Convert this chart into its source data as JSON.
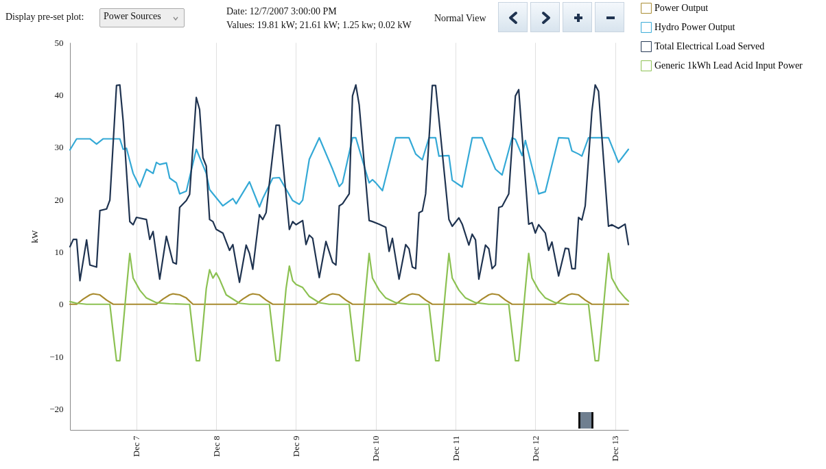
{
  "chart_data": {
    "type": "line",
    "annotations": [
      "Display pre-set plot:",
      "Power Sources",
      "Date: 12/7/2007 3:00:00 PM",
      "Values: 19.81 kW; 21.61 kW; 1.25 kw; 0.02 kW",
      "Normal View"
    ],
    "ylabel": "kW",
    "xlim": [
      "2007-12-06T04:00",
      "2007-12-13T04:00"
    ],
    "xticks": [
      {
        "value": "2007-12-07T00:00",
        "label": "Dec 7"
      },
      {
        "value": "2007-12-08T00:00",
        "label": "Dec 8"
      },
      {
        "value": "2007-12-09T00:00",
        "label": "Dec 9"
      },
      {
        "value": "2007-12-10T00:00",
        "label": "Dec 10"
      },
      {
        "value": "2007-12-11T00:00",
        "label": "Dec 11"
      },
      {
        "value": "2007-12-12T00:00",
        "label": "Dec 12"
      },
      {
        "value": "2007-12-13T00:00",
        "label": "Dec 13"
      }
    ],
    "ylim": [
      -24,
      50
    ],
    "yticks": [
      -20,
      -10,
      0,
      10,
      20,
      30,
      40,
      50
    ],
    "grid": "x",
    "legend": "top right",
    "line_style": "solid",
    "marker": "none",
    "series": [
      {
        "name": "Power Output",
        "color": "#a88a2e",
        "x": [
          "2007-12-06T04:00",
          "2007-12-06T06:00",
          "2007-12-06T08:00",
          "2007-12-06T10:00",
          "2007-12-06T11:00",
          "2007-12-06T13:00",
          "2007-12-06T15:00",
          "2007-12-06T17:00",
          "2007-12-07T06:00",
          "2007-12-07T08:00",
          "2007-12-07T10:00",
          "2007-12-07T11:00",
          "2007-12-07T13:00",
          "2007-12-07T15:00",
          "2007-12-07T17:00",
          "2007-12-08T06:00",
          "2007-12-08T08:00",
          "2007-12-08T10:00",
          "2007-12-08T11:00",
          "2007-12-08T13:00",
          "2007-12-08T15:00",
          "2007-12-08T17:00",
          "2007-12-09T06:00",
          "2007-12-09T08:00",
          "2007-12-09T10:00",
          "2007-12-09T11:00",
          "2007-12-09T13:00",
          "2007-12-09T15:00",
          "2007-12-09T17:00",
          "2007-12-10T06:00",
          "2007-12-10T08:00",
          "2007-12-10T10:00",
          "2007-12-10T11:00",
          "2007-12-10T13:00",
          "2007-12-10T15:00",
          "2007-12-10T17:00",
          "2007-12-11T06:00",
          "2007-12-11T08:00",
          "2007-12-11T10:00",
          "2007-12-11T11:00",
          "2007-12-11T13:00",
          "2007-12-11T15:00",
          "2007-12-11T17:00",
          "2007-12-12T06:00",
          "2007-12-12T08:00",
          "2007-12-12T10:00",
          "2007-12-12T11:00",
          "2007-12-12T13:00",
          "2007-12-12T15:00",
          "2007-12-12T17:00",
          "2007-12-13T04:00"
        ],
        "values": [
          0,
          0,
          1.0,
          1.8,
          2.0,
          1.8,
          0.8,
          0,
          0,
          1.0,
          1.8,
          2.0,
          1.8,
          1.2,
          0,
          0,
          1.0,
          1.8,
          2.0,
          1.8,
          0.8,
          0,
          0,
          1.0,
          1.8,
          2.0,
          1.8,
          0.8,
          0,
          0,
          1.0,
          1.8,
          2.0,
          1.8,
          0.8,
          0,
          0,
          1.0,
          1.8,
          2.0,
          1.8,
          0.8,
          0,
          0,
          1.0,
          1.8,
          2.0,
          1.8,
          0.8,
          0,
          0
        ]
      },
      {
        "name": "Hydro Power Output",
        "color": "#34a9d6",
        "x": [
          "2007-12-06T04:00",
          "2007-12-06T06:00",
          "2007-12-06T10:00",
          "2007-12-06T12:00",
          "2007-12-06T14:00",
          "2007-12-06T19:00",
          "2007-12-06T20:00",
          "2007-12-06T21:00",
          "2007-12-06T23:00",
          "2007-12-07T01:00",
          "2007-12-07T03:00",
          "2007-12-07T05:00",
          "2007-12-07T06:00",
          "2007-12-07T07:00",
          "2007-12-07T09:00",
          "2007-12-07T10:00",
          "2007-12-07T12:00",
          "2007-12-07T13:00",
          "2007-12-07T15:00",
          "2007-12-07T18:00",
          "2007-12-07T21:00",
          "2007-12-07T22:00",
          "2007-12-08T02:00",
          "2007-12-08T05:00",
          "2007-12-08T06:00",
          "2007-12-08T10:00",
          "2007-12-08T13:00",
          "2007-12-08T14:00",
          "2007-12-08T17:00",
          "2007-12-08T19:00",
          "2007-12-08T23:00",
          "2007-12-09T01:00",
          "2007-12-09T02:00",
          "2007-12-09T04:00",
          "2007-12-09T07:00",
          "2007-12-09T11:00",
          "2007-12-09T13:00",
          "2007-12-09T14:00",
          "2007-12-09T17:00",
          "2007-12-09T18:00",
          "2007-12-09T22:00",
          "2007-12-09T23:00",
          "2007-12-10T00:00",
          "2007-12-10T02:00",
          "2007-12-10T06:00",
          "2007-12-10T10:00",
          "2007-12-10T12:00",
          "2007-12-10T14:00",
          "2007-12-10T16:00",
          "2007-12-10T18:00",
          "2007-12-10T19:00",
          "2007-12-10T22:00",
          "2007-12-10T23:00",
          "2007-12-11T02:00",
          "2007-12-11T05:00",
          "2007-12-11T08:00",
          "2007-12-11T12:00",
          "2007-12-11T14:00",
          "2007-12-11T17:00",
          "2007-12-11T18:00",
          "2007-12-11T20:00",
          "2007-12-11T21:00",
          "2007-12-12T00:00",
          "2007-12-12T01:00",
          "2007-12-12T03:00",
          "2007-12-12T07:00",
          "2007-12-12T10:00",
          "2007-12-12T11:00",
          "2007-12-12T13:00",
          "2007-12-12T14:00",
          "2007-12-12T16:00",
          "2007-12-12T22:00",
          "2007-12-13T01:00",
          "2007-12-13T04:00"
        ],
        "values": [
          29.5,
          31.6,
          31.6,
          30.6,
          31.6,
          31.6,
          29.6,
          29.8,
          25.0,
          22.4,
          25.8,
          25.0,
          27.1,
          26.7,
          27.0,
          24.1,
          23.2,
          21.1,
          21.6,
          29.6,
          25.0,
          21.9,
          18.8,
          20.2,
          19.2,
          23.4,
          18.6,
          20.2,
          24.1,
          24.2,
          19.8,
          19.1,
          19.9,
          27.7,
          31.8,
          25.8,
          22.5,
          23.2,
          31.8,
          31.8,
          23.2,
          23.8,
          23.2,
          21.7,
          31.8,
          31.8,
          28.7,
          27.6,
          31.8,
          31.8,
          28.3,
          28.4,
          23.7,
          22.4,
          31.8,
          31.8,
          25.8,
          24.7,
          31.8,
          31.5,
          28.4,
          31.3,
          23.7,
          21.1,
          21.5,
          31.8,
          31.7,
          29.3,
          28.7,
          28.3,
          31.8,
          31.8,
          27.1,
          29.6
        ]
      },
      {
        "name": "Total Electrical Load Served",
        "color": "#1f3350",
        "x": [
          "2007-12-06T04:00",
          "2007-12-06T05:00",
          "2007-12-06T06:00",
          "2007-12-06T07:00",
          "2007-12-06T09:00",
          "2007-12-06T10:00",
          "2007-12-06T12:00",
          "2007-12-06T13:00",
          "2007-12-06T15:00",
          "2007-12-06T16:00",
          "2007-12-06T18:00",
          "2007-12-06T19:00",
          "2007-12-06T20:00",
          "2007-12-06T22:00",
          "2007-12-06T23:00",
          "2007-12-07T00:00",
          "2007-12-07T03:00",
          "2007-12-07T04:00",
          "2007-12-07T05:00",
          "2007-12-07T07:00",
          "2007-12-07T09:00",
          "2007-12-07T11:00",
          "2007-12-07T12:00",
          "2007-12-07T13:00",
          "2007-12-07T15:00",
          "2007-12-07T16:00",
          "2007-12-07T18:00",
          "2007-12-07T19:00",
          "2007-12-07T20:00",
          "2007-12-07T21:00",
          "2007-12-07T22:00",
          "2007-12-07T23:00",
          "2007-12-08T00:00",
          "2007-12-08T02:00",
          "2007-12-08T04:00",
          "2007-12-08T05:00",
          "2007-12-08T07:00",
          "2007-12-08T09:00",
          "2007-12-08T10:00",
          "2007-12-08T11:00",
          "2007-12-08T13:00",
          "2007-12-08T14:00",
          "2007-12-08T15:00",
          "2007-12-08T16:00",
          "2007-12-08T18:00",
          "2007-12-08T19:00",
          "2007-12-08T22:00",
          "2007-12-08T23:00",
          "2007-12-09T00:00",
          "2007-12-09T02:00",
          "2007-12-09T03:00",
          "2007-12-09T04:00",
          "2007-12-09T05:00",
          "2007-12-09T07:00",
          "2007-12-09T09:00",
          "2007-12-09T11:00",
          "2007-12-09T12:00",
          "2007-12-09T13:00",
          "2007-12-09T14:00",
          "2007-12-09T16:00",
          "2007-12-09T17:00",
          "2007-12-09T18:00",
          "2007-12-09T19:00",
          "2007-12-09T22:00",
          "2007-12-09T23:00",
          "2007-12-10T01:00",
          "2007-12-10T03:00",
          "2007-12-10T04:00",
          "2007-12-10T05:00",
          "2007-12-10T07:00",
          "2007-12-10T09:00",
          "2007-12-10T10:00",
          "2007-12-10T11:00",
          "2007-12-10T12:00",
          "2007-12-10T13:00",
          "2007-12-10T14:00",
          "2007-12-10T15:00",
          "2007-12-10T17:00",
          "2007-12-10T18:00",
          "2007-12-10T22:00",
          "2007-12-10T23:00",
          "2007-12-11T01:00",
          "2007-12-11T02:00",
          "2007-12-11T04:00",
          "2007-12-11T05:00",
          "2007-12-11T06:00",
          "2007-12-11T07:00",
          "2007-12-11T09:00",
          "2007-12-11T10:00",
          "2007-12-11T11:00",
          "2007-12-11T12:00",
          "2007-12-11T13:00",
          "2007-12-11T14:00",
          "2007-12-11T16:00",
          "2007-12-11T18:00",
          "2007-12-11T19:00",
          "2007-12-11T22:00",
          "2007-12-11T23:00",
          "2007-12-12T00:00",
          "2007-12-12T01:00",
          "2007-12-12T03:00",
          "2007-12-12T04:00",
          "2007-12-12T05:00",
          "2007-12-12T07:00",
          "2007-12-12T09:00",
          "2007-12-12T10:00",
          "2007-12-12T11:00",
          "2007-12-12T12:00",
          "2007-12-12T13:00",
          "2007-12-12T14:00",
          "2007-12-12T15:00",
          "2007-12-12T17:00",
          "2007-12-12T18:00",
          "2007-12-12T19:00",
          "2007-12-12T22:00",
          "2007-12-12T23:00",
          "2007-12-13T01:00",
          "2007-12-13T03:00",
          "2007-12-13T04:00"
        ],
        "values": [
          11.0,
          12.4,
          12.4,
          4.5,
          12.3,
          7.5,
          7.1,
          17.9,
          18.2,
          19.9,
          41.8,
          41.9,
          35.0,
          15.8,
          15.2,
          16.6,
          16.2,
          12.4,
          13.9,
          4.8,
          13.0,
          8.0,
          7.7,
          18.5,
          19.8,
          21.0,
          39.5,
          37.2,
          28.0,
          26.4,
          16.2,
          15.8,
          14.3,
          13.6,
          10.3,
          11.4,
          4.2,
          11.3,
          9.7,
          6.7,
          17.1,
          16.2,
          17.5,
          23.2,
          34.2,
          34.2,
          14.3,
          15.8,
          15.2,
          16.0,
          11.4,
          13.2,
          12.6,
          5.1,
          12.0,
          8.0,
          7.5,
          18.8,
          19.2,
          21.1,
          39.8,
          41.9,
          38.1,
          16.0,
          15.8,
          15.3,
          14.7,
          10.1,
          12.6,
          4.8,
          11.4,
          10.6,
          7.1,
          6.8,
          17.5,
          17.8,
          21.1,
          41.8,
          41.8,
          16.2,
          14.9,
          16.5,
          15.3,
          11.3,
          13.4,
          12.3,
          4.8,
          11.3,
          10.6,
          6.8,
          7.5,
          18.5,
          18.7,
          21.1,
          39.8,
          41.0,
          15.3,
          15.6,
          13.6,
          15.2,
          13.6,
          10.3,
          11.9,
          5.4,
          10.7,
          10.6,
          6.8,
          6.8,
          16.6,
          16.1,
          18.8,
          36.8,
          41.9,
          40.7,
          14.9,
          15.2,
          14.5,
          15.3,
          11.4
        ]
      },
      {
        "name": "Generic 1kWh Lead Acid Input Power",
        "color": "#8cc152",
        "x": [
          "2007-12-06T04:00",
          "2007-12-06T06:00",
          "2007-12-06T09:00",
          "2007-12-06T16:00",
          "2007-12-06T17:00",
          "2007-12-06T18:00",
          "2007-12-06T19:00",
          "2007-12-06T20:00",
          "2007-12-06T21:00",
          "2007-12-06T22:00",
          "2007-12-06T23:00",
          "2007-12-07T01:00",
          "2007-12-07T03:00",
          "2007-12-07T06:00",
          "2007-12-07T10:00",
          "2007-12-07T15:00",
          "2007-12-07T16:00",
          "2007-12-07T17:00",
          "2007-12-07T18:00",
          "2007-12-07T19:00",
          "2007-12-07T20:00",
          "2007-12-07T21:00",
          "2007-12-07T22:00",
          "2007-12-07T23:00",
          "2007-12-08T00:00",
          "2007-12-08T01:00",
          "2007-12-08T03:00",
          "2007-12-08T07:00",
          "2007-12-08T10:00",
          "2007-12-08T16:00",
          "2007-12-08T17:00",
          "2007-12-08T18:00",
          "2007-12-08T19:00",
          "2007-12-08T20:00",
          "2007-12-08T21:00",
          "2007-12-08T22:00",
          "2007-12-08T23:00",
          "2007-12-09T00:00",
          "2007-12-09T01:00",
          "2007-12-09T02:00",
          "2007-12-09T04:00",
          "2007-12-09T07:00",
          "2007-12-09T10:00",
          "2007-12-09T16:00",
          "2007-12-09T17:00",
          "2007-12-09T18:00",
          "2007-12-09T19:00",
          "2007-12-09T20:00",
          "2007-12-09T21:00",
          "2007-12-09T22:00",
          "2007-12-09T23:00",
          "2007-12-10T01:00",
          "2007-12-10T03:00",
          "2007-12-10T06:00",
          "2007-12-10T10:00",
          "2007-12-10T16:00",
          "2007-12-10T17:00",
          "2007-12-10T18:00",
          "2007-12-10T19:00",
          "2007-12-10T20:00",
          "2007-12-10T21:00",
          "2007-12-10T22:00",
          "2007-12-10T23:00",
          "2007-12-11T01:00",
          "2007-12-11T03:00",
          "2007-12-11T06:00",
          "2007-12-11T10:00",
          "2007-12-11T16:00",
          "2007-12-11T17:00",
          "2007-12-11T18:00",
          "2007-12-11T19:00",
          "2007-12-11T20:00",
          "2007-12-11T21:00",
          "2007-12-11T22:00",
          "2007-12-11T23:00",
          "2007-12-12T01:00",
          "2007-12-12T03:00",
          "2007-12-12T06:00",
          "2007-12-12T10:00",
          "2007-12-12T16:00",
          "2007-12-12T17:00",
          "2007-12-12T18:00",
          "2007-12-12T19:00",
          "2007-12-12T20:00",
          "2007-12-12T21:00",
          "2007-12-12T22:00",
          "2007-12-12T23:00",
          "2007-12-13T01:00",
          "2007-12-13T03:00",
          "2007-12-13T04:00"
        ],
        "values": [
          0.5,
          0.2,
          0,
          0,
          -5.5,
          -10.8,
          -10.8,
          -4.0,
          3.0,
          9.7,
          5.0,
          2.7,
          1.2,
          0.3,
          0.1,
          0,
          0,
          -5.5,
          -10.8,
          -10.8,
          -4.0,
          3.0,
          6.6,
          5.0,
          6.0,
          4.8,
          1.8,
          0.2,
          0,
          0,
          -5.5,
          -10.8,
          -10.8,
          -4.0,
          3.0,
          7.3,
          4.5,
          3.8,
          3.5,
          3.2,
          1.5,
          0.3,
          0,
          0,
          -5.5,
          -10.8,
          -10.8,
          -4.0,
          3.0,
          9.7,
          5.0,
          2.7,
          1.2,
          0.3,
          0,
          0,
          -5.5,
          -10.8,
          -10.8,
          -4.0,
          3.0,
          9.7,
          5.0,
          2.7,
          1.2,
          0.3,
          0,
          0,
          -5.5,
          -10.8,
          -10.8,
          -4.0,
          3.0,
          9.7,
          5.0,
          2.7,
          1.2,
          0.3,
          0,
          0,
          -5.5,
          -10.8,
          -10.8,
          -4.0,
          3.0,
          9.7,
          5.0,
          2.7,
          1.2,
          0.6
        ]
      }
    ]
  }
}
